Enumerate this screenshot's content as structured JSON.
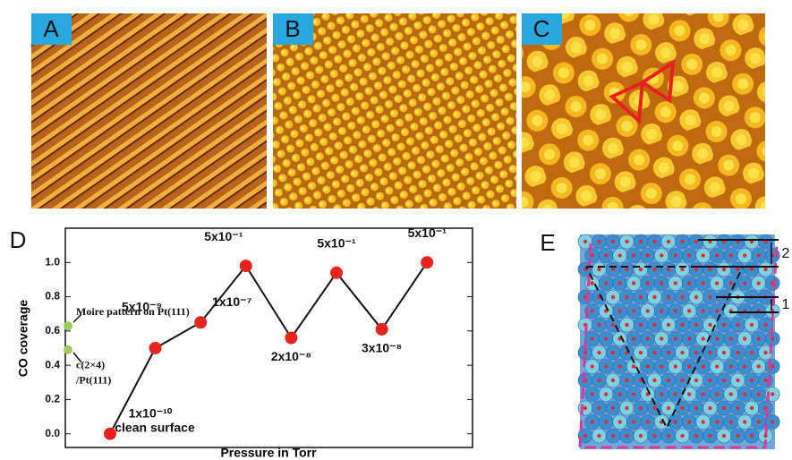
{
  "panels": [
    "A",
    "B",
    "C",
    "D",
    "E"
  ],
  "panel_e_marks": [
    "2",
    "1"
  ],
  "chart_data": {
    "type": "line",
    "xlabel": "Pressure in Torr",
    "ylabel": "CO coverage",
    "categories": [
      "1x10⁻¹⁰",
      "5x10⁻⁹",
      "1x10⁻⁷",
      "5x10⁻¹",
      "2x10⁻⁸",
      "5x10⁻¹",
      "3x10⁻⁸",
      "5x10⁻¹"
    ],
    "annotation": "clean surface",
    "series": [
      {
        "color": "#e8231e",
        "values": [
          0.0,
          0.5,
          0.65,
          0.98,
          0.56,
          0.94,
          0.61,
          1.0
        ]
      }
    ],
    "reference_points": [
      {
        "label": [
          "Moire pattern on Pt(111)"
        ],
        "value": 0.63,
        "color": "#9acd5a"
      },
      {
        "label": [
          "c(2×4)",
          "/Pt(111)"
        ],
        "value": 0.49,
        "color": "#9acd5a"
      }
    ],
    "ylim": [
      -0.08,
      1.2
    ],
    "yticks": [
      {
        "value": 0,
        "label": "0.0"
      },
      0.2,
      0.4,
      0.6,
      0.8,
      {
        "value": 1,
        "label": "1.0"
      }
    ]
  }
}
